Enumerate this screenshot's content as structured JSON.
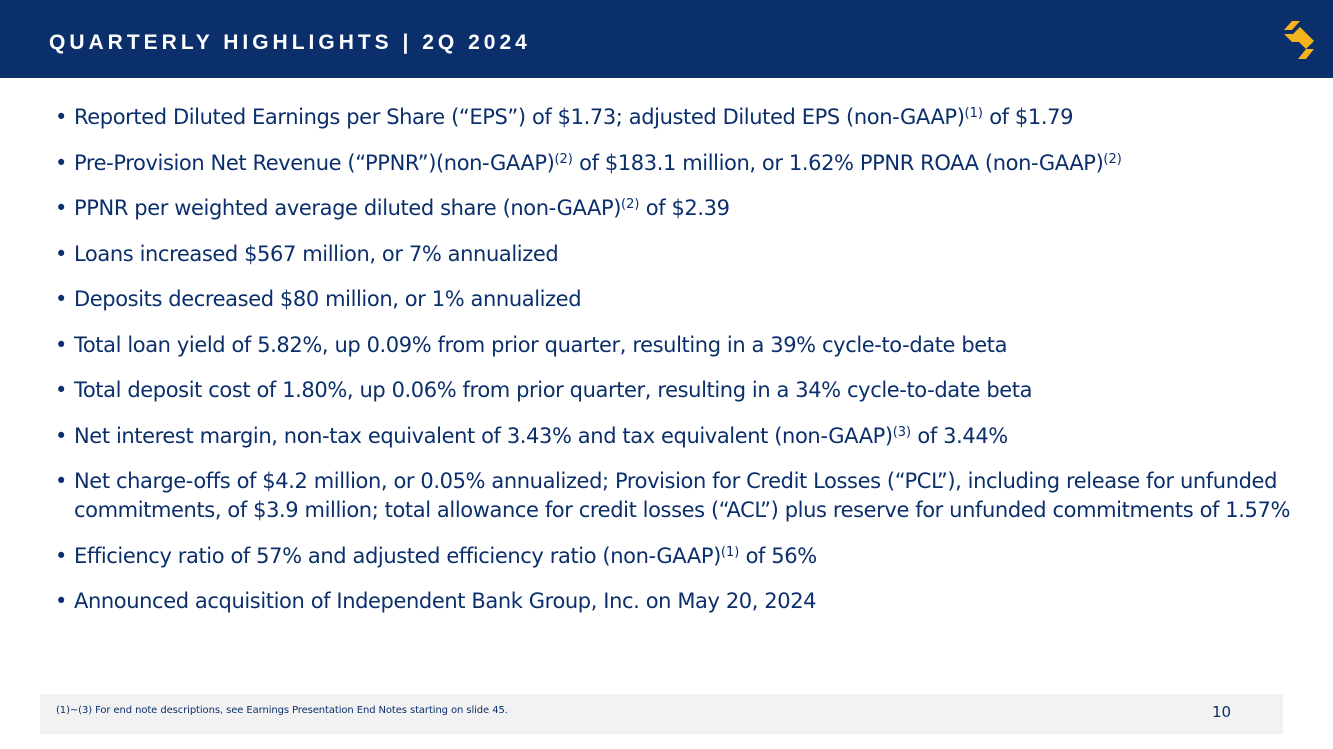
{
  "header": {
    "title": "QUARTERLY HIGHLIGHTS | 2Q 2024",
    "logo_icon": "brand-s-logo-icon",
    "background_color": "#0b2f6b",
    "logo_color": "#f5b31e"
  },
  "bullets": [
    {
      "parts": [
        {
          "text": "Reported Diluted Earnings per Share (“EPS”) of $1.73; adjusted Diluted EPS (non-GAAP)"
        },
        {
          "sup": "(1)"
        },
        {
          "text": " of $1.79"
        }
      ]
    },
    {
      "parts": [
        {
          "text": "Pre-Provision Net Revenue (“PPNR”)(non-GAAP)"
        },
        {
          "sup": "(2)"
        },
        {
          "text": " of $183.1 million, or 1.62% PPNR ROAA (non-GAAP)"
        },
        {
          "sup": "(2)"
        }
      ]
    },
    {
      "parts": [
        {
          "text": "PPNR per weighted average diluted share (non-GAAP)"
        },
        {
          "sup": "(2)"
        },
        {
          "text": " of $2.39"
        }
      ]
    },
    {
      "parts": [
        {
          "text": "Loans increased $567 million, or 7% annualized"
        }
      ]
    },
    {
      "parts": [
        {
          "text": "Deposits decreased $80 million, or 1% annualized"
        }
      ]
    },
    {
      "parts": [
        {
          "text": "Total loan yield of 5.82%, up 0.09% from prior quarter, resulting in a 39% cycle-to-date beta"
        }
      ]
    },
    {
      "parts": [
        {
          "text": "Total deposit cost of 1.80%, up 0.06% from prior quarter, resulting in a 34% cycle-to-date beta"
        }
      ]
    },
    {
      "parts": [
        {
          "text": "Net interest margin, non-tax equivalent of 3.43% and tax equivalent (non-GAAP)"
        },
        {
          "sup": "(3)"
        },
        {
          "text": " of 3.44%"
        }
      ]
    },
    {
      "parts": [
        {
          "text": "Net charge-offs of $4.2 million, or 0.05% annualized; Provision for Credit Losses (“PCL”), including release for unfunded commitments, of $3.9 million; total allowance for credit losses (“ACL”) plus reserve for unfunded commitments of 1.57%"
        }
      ]
    },
    {
      "parts": [
        {
          "text": "Efficiency ratio of 57% and adjusted efficiency ratio (non-GAAP)"
        },
        {
          "sup": "(1)"
        },
        {
          "text": " of 56%"
        }
      ]
    },
    {
      "parts": [
        {
          "text": "Announced acquisition of Independent Bank Group, Inc. on May 20, 2024"
        }
      ]
    }
  ],
  "bullet_glyph": "•",
  "footer": {
    "footnote": "(1)~(3)  For end note descriptions, see Earnings Presentation End Notes starting on slide 45.",
    "page_number": "10"
  }
}
